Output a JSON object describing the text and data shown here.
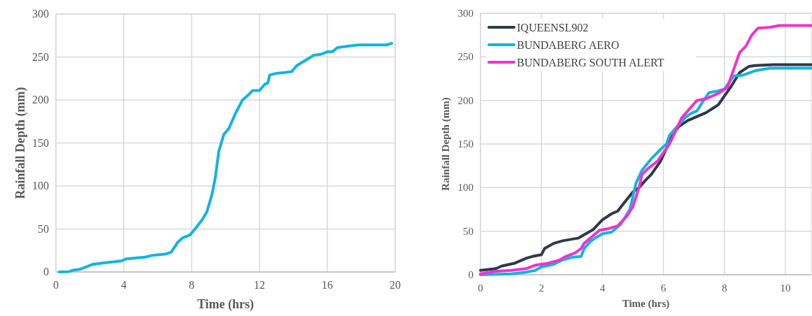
{
  "chart_data": [
    {
      "type": "line",
      "xlabel": "Time (hrs)",
      "ylabel": "Rainfall Depth (mm)",
      "xlim": [
        0,
        20
      ],
      "ylim": [
        0,
        300
      ],
      "xticks": [
        0,
        4,
        8,
        12,
        16,
        20
      ],
      "yticks": [
        0,
        50,
        100,
        150,
        200,
        250,
        300
      ],
      "grid": true,
      "legend": false,
      "series": [
        {
          "color": "#12b4e0",
          "x": [
            0.2,
            0.8,
            1,
            1.4,
            1.8,
            2.2,
            2.6,
            3,
            3.5,
            3.9,
            4.1,
            4.6,
            5.2,
            5.6,
            6,
            6.5,
            6.8,
            7.2,
            7.5,
            7.9,
            8.2,
            8.6,
            8.9,
            9.2,
            9.4,
            9.6,
            9.9,
            10.2,
            10.6,
            11,
            11.3,
            11.6,
            12,
            12.3,
            12.5,
            12.6,
            13,
            13.5,
            13.9,
            14.2,
            14.7,
            15.2,
            15.6,
            16,
            16.3,
            16.6,
            17,
            17.8,
            19.5,
            19.8
          ],
          "values": [
            0,
            0.5,
            2,
            3,
            6,
            9,
            10,
            11,
            12,
            13,
            15,
            16,
            17,
            19,
            20,
            21,
            23,
            35,
            40,
            43,
            50,
            60,
            70,
            90,
            110,
            140,
            160,
            167,
            185,
            200,
            205,
            211,
            211,
            218,
            220,
            229,
            231,
            232,
            233,
            240,
            246,
            252,
            253,
            256,
            256,
            261,
            262,
            264,
            264,
            266
          ]
        }
      ]
    },
    {
      "type": "line",
      "xlabel": "Time (hrs)",
      "ylabel": "Rainfall Depth (mm)",
      "xlim": [
        0,
        10.85
      ],
      "ylim": [
        0,
        300
      ],
      "xticks": [
        0,
        2,
        4,
        6,
        8,
        10
      ],
      "yticks": [
        0,
        50,
        100,
        150,
        200,
        250,
        300
      ],
      "grid": true,
      "legend": "top left",
      "series": [
        {
          "name": "IQUEENSL902",
          "color": "#2d3a46",
          "x": [
            0,
            0.5,
            0.7,
            1.1,
            1.5,
            1.7,
            2,
            2.1,
            2.4,
            2.7,
            3.2,
            3.7,
            4,
            4.3,
            4.5,
            4.7,
            5,
            5.2,
            5.4,
            5.6,
            5.9,
            6.1,
            6.3,
            6.5,
            6.8,
            7,
            7.4,
            7.8,
            8,
            8.2,
            8.5,
            8.8,
            9,
            9.6,
            10.85
          ],
          "values": [
            5,
            7,
            10,
            13,
            19,
            21,
            23,
            30,
            36,
            39,
            42,
            52,
            63,
            70,
            73,
            82,
            95,
            100,
            108,
            115,
            130,
            145,
            160,
            170,
            177,
            180,
            186,
            195,
            205,
            215,
            232,
            239,
            240,
            241,
            241
          ]
        },
        {
          "name": "BUNDABERG AERO",
          "color": "#12b4e0",
          "x": [
            0,
            1,
            1.5,
            1.8,
            2,
            2.4,
            2.7,
            3,
            3.3,
            3.4,
            3.6,
            3.8,
            4,
            4.3,
            4.6,
            4.9,
            5.1,
            5.3,
            5.6,
            5.8,
            6,
            6.1,
            6.2,
            6.4,
            6.7,
            6.9,
            7.1,
            7.3,
            7.5,
            7.8,
            8,
            8.3,
            8.6,
            9,
            9.5,
            10.85
          ],
          "values": [
            0,
            1,
            3,
            5,
            9,
            12,
            17,
            20,
            21,
            30,
            38,
            43,
            47,
            49,
            58,
            75,
            105,
            120,
            133,
            140,
            147,
            150,
            160,
            168,
            180,
            185,
            188,
            199,
            209,
            211,
            213,
            228,
            229,
            234,
            237,
            237
          ]
        },
        {
          "name": "BUNDABERG SOUTH ALERT",
          "color": "#f032d0",
          "x": [
            0,
            0.5,
            1,
            1.5,
            1.8,
            2.2,
            2.6,
            2.8,
            3.1,
            3.3,
            3.4,
            3.7,
            3.9,
            4.2,
            4.5,
            4.8,
            5,
            5.2,
            5.3,
            5.5,
            5.8,
            6,
            6.2,
            6.4,
            6.6,
            6.9,
            7.1,
            7.4,
            7.8,
            8.1,
            8.3,
            8.5,
            8.7,
            8.9,
            9.1,
            9.5,
            9.8,
            10.85
          ],
          "values": [
            1,
            4,
            5,
            7,
            11,
            13,
            17,
            21,
            25,
            30,
            36,
            45,
            51,
            53,
            56,
            67,
            78,
            100,
            115,
            122,
            130,
            140,
            150,
            165,
            180,
            192,
            200,
            202,
            208,
            215,
            235,
            255,
            262,
            275,
            283,
            284,
            286,
            286
          ]
        }
      ]
    }
  ]
}
